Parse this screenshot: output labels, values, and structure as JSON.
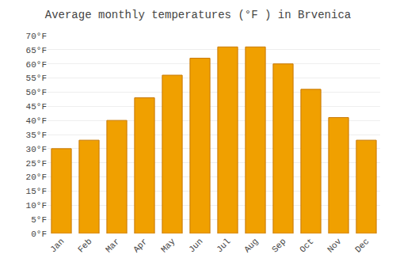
{
  "chart_data": {
    "type": "bar",
    "title": "Average monthly temperatures (°F ) in Brvenica",
    "categories": [
      "Jan",
      "Feb",
      "Mar",
      "Apr",
      "May",
      "Jun",
      "Jul",
      "Aug",
      "Sep",
      "Oct",
      "Nov",
      "Dec"
    ],
    "values": [
      30,
      33,
      40,
      48,
      56,
      62,
      66,
      66,
      60,
      51,
      41,
      33
    ],
    "color": "#F0A000",
    "ylim": [
      0,
      70
    ],
    "yticks": [
      {
        "value": 0,
        "label": "0°F"
      },
      {
        "value": 5,
        "label": "5°F"
      },
      {
        "value": 10,
        "label": "10°F"
      },
      {
        "value": 15,
        "label": "15°F"
      },
      {
        "value": 20,
        "label": "20°F"
      },
      {
        "value": 25,
        "label": "25°F"
      },
      {
        "value": 30,
        "label": "30°F"
      },
      {
        "value": 35,
        "label": "35°F"
      },
      {
        "value": 40,
        "label": "40°F"
      },
      {
        "value": 45,
        "label": "45°F"
      },
      {
        "value": 50,
        "label": "50°F"
      },
      {
        "value": 55,
        "label": "55°F"
      },
      {
        "value": 60,
        "label": "60°F"
      },
      {
        "value": 65,
        "label": "65°F"
      },
      {
        "value": 70,
        "label": "70°F"
      }
    ],
    "grid": true
  }
}
